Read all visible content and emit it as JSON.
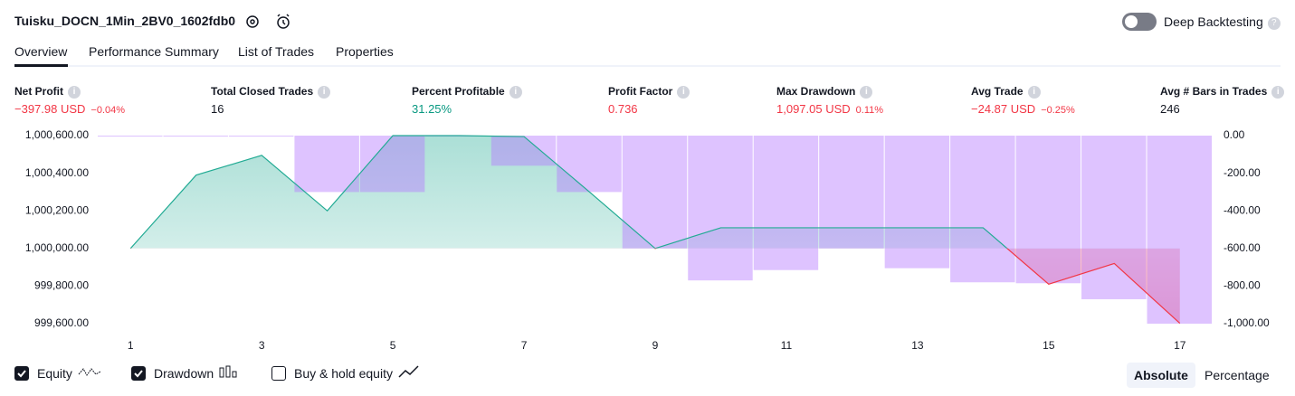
{
  "header": {
    "title": "Tuisku_DOCN_1Min_2BV0_1602fdb0",
    "toggle_label": "Deep Backtesting"
  },
  "tabs": [
    "Overview",
    "Performance Summary",
    "List of Trades",
    "Properties"
  ],
  "metrics": [
    {
      "label": "Net Profit",
      "value": "−397.98 USD",
      "percent": "−0.04%",
      "color": "#f23645"
    },
    {
      "label": "Total Closed Trades",
      "value": "16",
      "color": "#131722"
    },
    {
      "label": "Percent Profitable",
      "value": "31.25%",
      "color": "#089981"
    },
    {
      "label": "Profit Factor",
      "value": "0.736",
      "color": "#f23645"
    },
    {
      "label": "Max Drawdown",
      "value": "1,097.05 USD",
      "percent": "0.11%",
      "color": "#f23645"
    },
    {
      "label": "Avg Trade",
      "value": "−24.87 USD",
      "percent": "−0.25%",
      "color": "#f23645"
    },
    {
      "label": "Avg # Bars in Trades",
      "value": "246",
      "color": "#131722"
    }
  ],
  "chart_data": {
    "type": "line",
    "x": [
      1,
      2,
      3,
      4,
      5,
      6,
      7,
      8,
      9,
      10,
      11,
      12,
      13,
      14,
      15,
      16,
      17
    ],
    "xlim": [
      0.5,
      17.5
    ],
    "xticks": [
      1,
      3,
      5,
      7,
      9,
      11,
      13,
      15,
      17
    ],
    "ylim": [
      999550,
      1000650
    ],
    "yticks": [
      {
        "value": 1000600,
        "label": "1,000,600.00"
      },
      {
        "value": 1000400,
        "label": "1,000,400.00"
      },
      {
        "value": 1000200,
        "label": "1,000,200.00"
      },
      {
        "value": 1000000,
        "label": "1,000,000.00"
      },
      {
        "value": 999800,
        "label": "999,800.00"
      },
      {
        "value": 999600,
        "label": "999,600.00"
      }
    ],
    "y2lim": [
      -1050,
      50
    ],
    "y2ticks": [
      {
        "value": 0,
        "label": "0.00"
      },
      {
        "value": -200,
        "label": "-200.00"
      },
      {
        "value": -400,
        "label": "-400.00"
      },
      {
        "value": -600,
        "label": "-600.00"
      },
      {
        "value": -800,
        "label": "-800.00"
      },
      {
        "value": -1000,
        "label": "-1,000.00"
      }
    ],
    "series": [
      {
        "name": "Equity",
        "type": "line",
        "axis": "y",
        "color": "#22ab94",
        "negative_color": "#f23645",
        "values": [
          1000000,
          1000390,
          1000495,
          1000200,
          1000600,
          1000600,
          1000595,
          1000300,
          1000000,
          1000110,
          1000110,
          1000110,
          1000110,
          1000110,
          999810,
          999920,
          999602
        ]
      },
      {
        "name": "Drawdown",
        "type": "bar",
        "axis": "y2",
        "color": "#b57bff",
        "values": [
          0,
          0,
          0,
          -300,
          -300,
          0,
          -160,
          -300,
          -600,
          -770,
          -715,
          -600,
          -705,
          -780,
          -785,
          -870,
          -1000
        ]
      }
    ]
  },
  "legend": [
    "Equity",
    "Drawdown",
    "Buy & hold equity"
  ],
  "buttons": [
    "Absolute",
    "Percentage"
  ]
}
